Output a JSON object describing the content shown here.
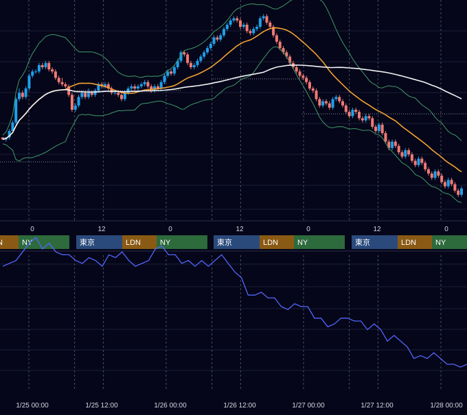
{
  "colors": {
    "background": "#050619",
    "grid": "#1a1f38",
    "session_divider": "#5a6076",
    "candle_up": "#1ea0ea",
    "candle_down": "#f07a74",
    "bollinger": "#3f9a6a",
    "ma_mid": "#f5a233",
    "ma_long": "#f4f4f6",
    "indicator_line": "#5466ff",
    "tokyo": "#2a4a7c",
    "london": "#8a5a14",
    "newyork": "#2d6a3c",
    "text": "#d6d8e2"
  },
  "hour_ticks": [
    "0",
    "12",
    "0",
    "12",
    "0",
    "12",
    "0"
  ],
  "sessions": [
    {
      "labels": [
        "",
        "LDN",
        "NY"
      ]
    },
    {
      "labels": [
        "東京",
        "LDN",
        "NY"
      ]
    },
    {
      "labels": [
        "東京",
        "LDN",
        "NY"
      ]
    },
    {
      "labels": [
        "東京",
        "LDN",
        "NY"
      ]
    },
    {
      "labels": [
        "東京",
        "LDN",
        "NY"
      ]
    }
  ],
  "date_ticks": [
    "1/25 00:00",
    "1/25 12:00",
    "1/26 00:00",
    "1/26 12:00",
    "1/27 00:00",
    "1/27 12:00",
    "1/28 00:00"
  ],
  "chart_data": [
    {
      "type": "candlestick",
      "title": "",
      "x_range_hours": [
        -5,
        33
      ],
      "ylim": [
        0,
        100
      ],
      "candles": [
        [
          -5.0,
          37,
          36,
          37,
          36
        ],
        [
          -4.75,
          36,
          37,
          37,
          35
        ],
        [
          -4.5,
          37,
          40,
          41,
          36
        ],
        [
          -4.25,
          40,
          44,
          45,
          40
        ],
        [
          -4.0,
          44,
          55,
          56,
          43
        ],
        [
          -3.75,
          55,
          58,
          60,
          54
        ],
        [
          -3.5,
          58,
          56,
          59,
          55
        ],
        [
          -3.25,
          56,
          60,
          61,
          55
        ],
        [
          -3.0,
          60,
          66,
          67,
          59
        ],
        [
          -2.75,
          66,
          68,
          69,
          65
        ],
        [
          -2.5,
          68,
          68,
          69,
          67
        ],
        [
          -2.25,
          68,
          71,
          72,
          67
        ],
        [
          -2.0,
          71,
          70,
          72,
          69
        ],
        [
          -1.75,
          70,
          72,
          73,
          69
        ],
        [
          -1.5,
          72,
          69,
          73,
          68
        ],
        [
          -1.25,
          69,
          68,
          70,
          67
        ],
        [
          -1.0,
          68,
          65,
          69,
          64
        ],
        [
          -0.75,
          65,
          63,
          66,
          62
        ],
        [
          -0.5,
          63,
          62,
          65,
          61
        ],
        [
          -0.25,
          62,
          61,
          63,
          60
        ],
        [
          0.0,
          61,
          57,
          62,
          56
        ],
        [
          0.25,
          57,
          50,
          58,
          49
        ],
        [
          0.5,
          50,
          52,
          53,
          49
        ],
        [
          0.75,
          52,
          56,
          57,
          51
        ],
        [
          1.0,
          56,
          58,
          59,
          55
        ],
        [
          1.25,
          58,
          56,
          59,
          55
        ],
        [
          1.5,
          56,
          58,
          60,
          55
        ],
        [
          1.75,
          58,
          57,
          59,
          56
        ],
        [
          2.0,
          57,
          59,
          60,
          56
        ],
        [
          2.25,
          59,
          62,
          63,
          58
        ],
        [
          2.5,
          62,
          61,
          63,
          60
        ],
        [
          2.75,
          61,
          62,
          63,
          60
        ],
        [
          3.0,
          62,
          60,
          63,
          59
        ],
        [
          3.25,
          60,
          58,
          61,
          57
        ],
        [
          3.5,
          58,
          58,
          59,
          57
        ],
        [
          3.75,
          58,
          57,
          59,
          56
        ],
        [
          4.0,
          57,
          55,
          58,
          54
        ],
        [
          4.25,
          55,
          58,
          59,
          54
        ],
        [
          4.5,
          58,
          60,
          61,
          57
        ],
        [
          4.75,
          60,
          61,
          62,
          59
        ],
        [
          5.0,
          61,
          60,
          62,
          59
        ],
        [
          5.25,
          60,
          61,
          62,
          59
        ],
        [
          5.5,
          61,
          62,
          63,
          60
        ],
        [
          5.75,
          62,
          63,
          64,
          61
        ],
        [
          6.0,
          63,
          61,
          64,
          60
        ],
        [
          6.25,
          61,
          59,
          62,
          58
        ],
        [
          6.5,
          59,
          61,
          62,
          58
        ],
        [
          6.75,
          61,
          60,
          62,
          59
        ],
        [
          7.0,
          60,
          63,
          64,
          59
        ],
        [
          7.25,
          63,
          66,
          67,
          62
        ],
        [
          7.5,
          66,
          68,
          69,
          65
        ],
        [
          7.75,
          68,
          67,
          69,
          66
        ],
        [
          8.0,
          67,
          70,
          71,
          66
        ],
        [
          8.25,
          70,
          73,
          74,
          69
        ],
        [
          8.5,
          73,
          77,
          78,
          72
        ],
        [
          8.75,
          77,
          76,
          78,
          75
        ],
        [
          9.0,
          76,
          72,
          77,
          71
        ],
        [
          9.25,
          72,
          70,
          73,
          69
        ],
        [
          9.5,
          70,
          71,
          72,
          69
        ],
        [
          9.75,
          71,
          73,
          74,
          70
        ],
        [
          10.0,
          73,
          75,
          76,
          72
        ],
        [
          10.25,
          75,
          77,
          78,
          74
        ],
        [
          10.5,
          77,
          79,
          80,
          76
        ],
        [
          10.75,
          79,
          81,
          82,
          78
        ],
        [
          11.0,
          81,
          84,
          85,
          80
        ],
        [
          11.25,
          84,
          83,
          85,
          82
        ],
        [
          11.5,
          83,
          85,
          86,
          82
        ],
        [
          11.75,
          85,
          88,
          89,
          84
        ],
        [
          12.0,
          88,
          90,
          91,
          87
        ],
        [
          12.25,
          90,
          92,
          93,
          89
        ],
        [
          12.5,
          92,
          93,
          94,
          91
        ],
        [
          12.75,
          93,
          92,
          94,
          91
        ],
        [
          13.0,
          92,
          89,
          93,
          88
        ],
        [
          13.25,
          89,
          90,
          91,
          88
        ],
        [
          13.5,
          90,
          87,
          91,
          86
        ],
        [
          13.75,
          87,
          86,
          88,
          85
        ],
        [
          14.0,
          86,
          88,
          89,
          85
        ],
        [
          14.25,
          88,
          89,
          90,
          87
        ],
        [
          14.5,
          89,
          93,
          94,
          88
        ],
        [
          14.75,
          93,
          94,
          95,
          92
        ],
        [
          15.0,
          94,
          91,
          95,
          90
        ],
        [
          15.25,
          91,
          89,
          92,
          88
        ],
        [
          15.5,
          89,
          85,
          90,
          84
        ],
        [
          15.75,
          85,
          82,
          86,
          81
        ],
        [
          16.0,
          82,
          79,
          83,
          78
        ],
        [
          16.25,
          79,
          77,
          80,
          76
        ],
        [
          16.5,
          77,
          75,
          78,
          74
        ],
        [
          16.75,
          75,
          72,
          76,
          71
        ],
        [
          17.0,
          72,
          70,
          73,
          69
        ],
        [
          17.25,
          70,
          68,
          71,
          67
        ],
        [
          17.5,
          68,
          66,
          69,
          65
        ],
        [
          17.75,
          66,
          65,
          67,
          64
        ],
        [
          18.0,
          65,
          63,
          66,
          62
        ],
        [
          18.25,
          63,
          60,
          64,
          59
        ],
        [
          18.5,
          60,
          59,
          61,
          58
        ],
        [
          18.75,
          59,
          55,
          60,
          54
        ],
        [
          19.0,
          55,
          52,
          56,
          51
        ],
        [
          19.25,
          52,
          54,
          55,
          51
        ],
        [
          19.5,
          54,
          53,
          55,
          52
        ],
        [
          19.75,
          53,
          51,
          54,
          50
        ],
        [
          20.0,
          51,
          55,
          56,
          50
        ],
        [
          20.25,
          55,
          56,
          57,
          54
        ],
        [
          20.5,
          56,
          54,
          57,
          53
        ],
        [
          20.75,
          54,
          52,
          55,
          51
        ],
        [
          21.0,
          52,
          49,
          53,
          48
        ],
        [
          21.25,
          49,
          47,
          50,
          46
        ],
        [
          21.5,
          47,
          50,
          51,
          46
        ],
        [
          21.75,
          50,
          49,
          51,
          48
        ],
        [
          22.0,
          49,
          46,
          50,
          45
        ],
        [
          22.25,
          46,
          45,
          47,
          44
        ],
        [
          22.5,
          45,
          47,
          48,
          44
        ],
        [
          22.75,
          47,
          46,
          48,
          45
        ],
        [
          23.0,
          46,
          42,
          47,
          41
        ],
        [
          23.25,
          42,
          40,
          43,
          39
        ],
        [
          23.5,
          40,
          43,
          44,
          39
        ],
        [
          23.75,
          43,
          39,
          44,
          38
        ],
        [
          24.0,
          39,
          35,
          40,
          34
        ],
        [
          24.25,
          35,
          32,
          36,
          31
        ],
        [
          24.5,
          32,
          35,
          36,
          31
        ],
        [
          24.75,
          35,
          33,
          36,
          32
        ],
        [
          25.0,
          33,
          30,
          34,
          29
        ],
        [
          25.25,
          30,
          28,
          31,
          27
        ],
        [
          25.5,
          28,
          31,
          32,
          27
        ],
        [
          25.75,
          31,
          29,
          32,
          28
        ],
        [
          26.0,
          29,
          26,
          30,
          25
        ],
        [
          26.25,
          26,
          24,
          27,
          23
        ],
        [
          26.5,
          24,
          27,
          28,
          23
        ],
        [
          26.75,
          27,
          25,
          28,
          24
        ],
        [
          27.0,
          25,
          22,
          26,
          21
        ],
        [
          27.25,
          22,
          20,
          23,
          19
        ],
        [
          27.5,
          20,
          18,
          21,
          17
        ],
        [
          27.75,
          18,
          21,
          22,
          17
        ],
        [
          28.0,
          21,
          19,
          22,
          18
        ],
        [
          28.25,
          19,
          16,
          20,
          15
        ],
        [
          28.5,
          16,
          14,
          17,
          13
        ],
        [
          28.75,
          14,
          17,
          18,
          13
        ],
        [
          29.0,
          17,
          15,
          18,
          14
        ],
        [
          29.25,
          15,
          12,
          16,
          11
        ],
        [
          29.5,
          12,
          10,
          13,
          9
        ],
        [
          29.75,
          10,
          13,
          14,
          9
        ]
      ]
    },
    {
      "type": "line",
      "title": "",
      "x_range_hours": [
        -5,
        33
      ],
      "ylim": [
        0,
        100
      ],
      "series": [
        {
          "x": [
            -5,
            -4,
            -3,
            -2.5,
            -2,
            -1.5,
            -1,
            -0.5,
            0,
            0.5,
            1,
            1.5,
            2,
            2.5,
            3,
            3.5,
            4,
            4.5,
            5,
            5.5,
            6,
            6.5,
            7,
            7.5,
            8,
            8.5,
            9,
            9.5,
            10,
            10.5,
            11,
            11.5,
            12,
            12.5,
            13,
            13.5,
            14,
            14.5,
            15,
            15.5,
            16,
            16.5,
            17,
            17.5,
            18,
            18.5,
            19,
            19.5,
            20,
            20.5,
            21,
            21.5,
            22,
            22.5,
            23,
            23.5,
            24,
            24.5,
            25,
            25.5,
            26,
            26.5,
            27,
            27.5,
            28,
            28.5,
            29,
            29.5,
            30
          ],
          "y": [
            64,
            66,
            72,
            74,
            70,
            72,
            69,
            68,
            68,
            66,
            65,
            67,
            66,
            64,
            68,
            67,
            69,
            66,
            64,
            65,
            66,
            70,
            71,
            68,
            68,
            65,
            66,
            64,
            66,
            64,
            66,
            68,
            65,
            62,
            60,
            54,
            54,
            55,
            53,
            53,
            50,
            49,
            51,
            50,
            50,
            46,
            46,
            43,
            44,
            46,
            46,
            45,
            45,
            42,
            44,
            42,
            38,
            40,
            38,
            36,
            32,
            33,
            32,
            34,
            32,
            30,
            30,
            29,
            30
          ]
        }
      ]
    }
  ]
}
